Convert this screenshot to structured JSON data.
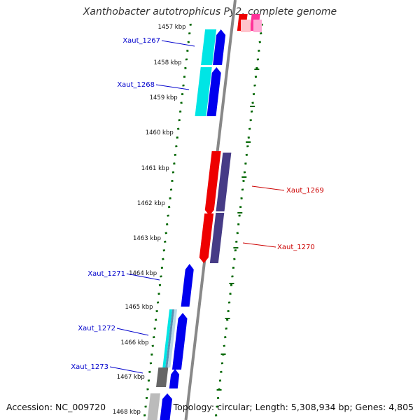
{
  "title": "Xanthobacter autotrophicus Py2, complete genome",
  "footer": {
    "accession": "Accession: NC_009720",
    "summary": "Topology: circular; Length: 5,308,934 bp; Genes: 4,805"
  },
  "ruler": {
    "labels": [
      "1457 kbp",
      "1458 kbp",
      "1459 kbp",
      "1460 kbp",
      "1461 kbp",
      "1462 kbp",
      "1463 kbp",
      "1464 kbp",
      "1465 kbp",
      "1466 kbp",
      "1467 kbp",
      "1468 kbp"
    ]
  },
  "genes": [
    {
      "name": "Xaut_1267",
      "color": "#0000cc"
    },
    {
      "name": "Xaut_1268",
      "color": "#0000cc"
    },
    {
      "name": "Xaut_1269",
      "color": "#cc0000"
    },
    {
      "name": "Xaut_1270",
      "color": "#cc0000"
    },
    {
      "name": "Xaut_1271",
      "color": "#0000cc"
    },
    {
      "name": "Xaut_1272",
      "color": "#0000cc"
    },
    {
      "name": "Xaut_1273",
      "color": "#0000cc"
    }
  ],
  "colors": {
    "forward_cds": "#0000ee",
    "reverse_cds": "#ee0000",
    "forward_gene": "#00e5e5",
    "reverse_gene": "#463b86",
    "backbone": "#888888",
    "tick_dots": "#006600"
  }
}
